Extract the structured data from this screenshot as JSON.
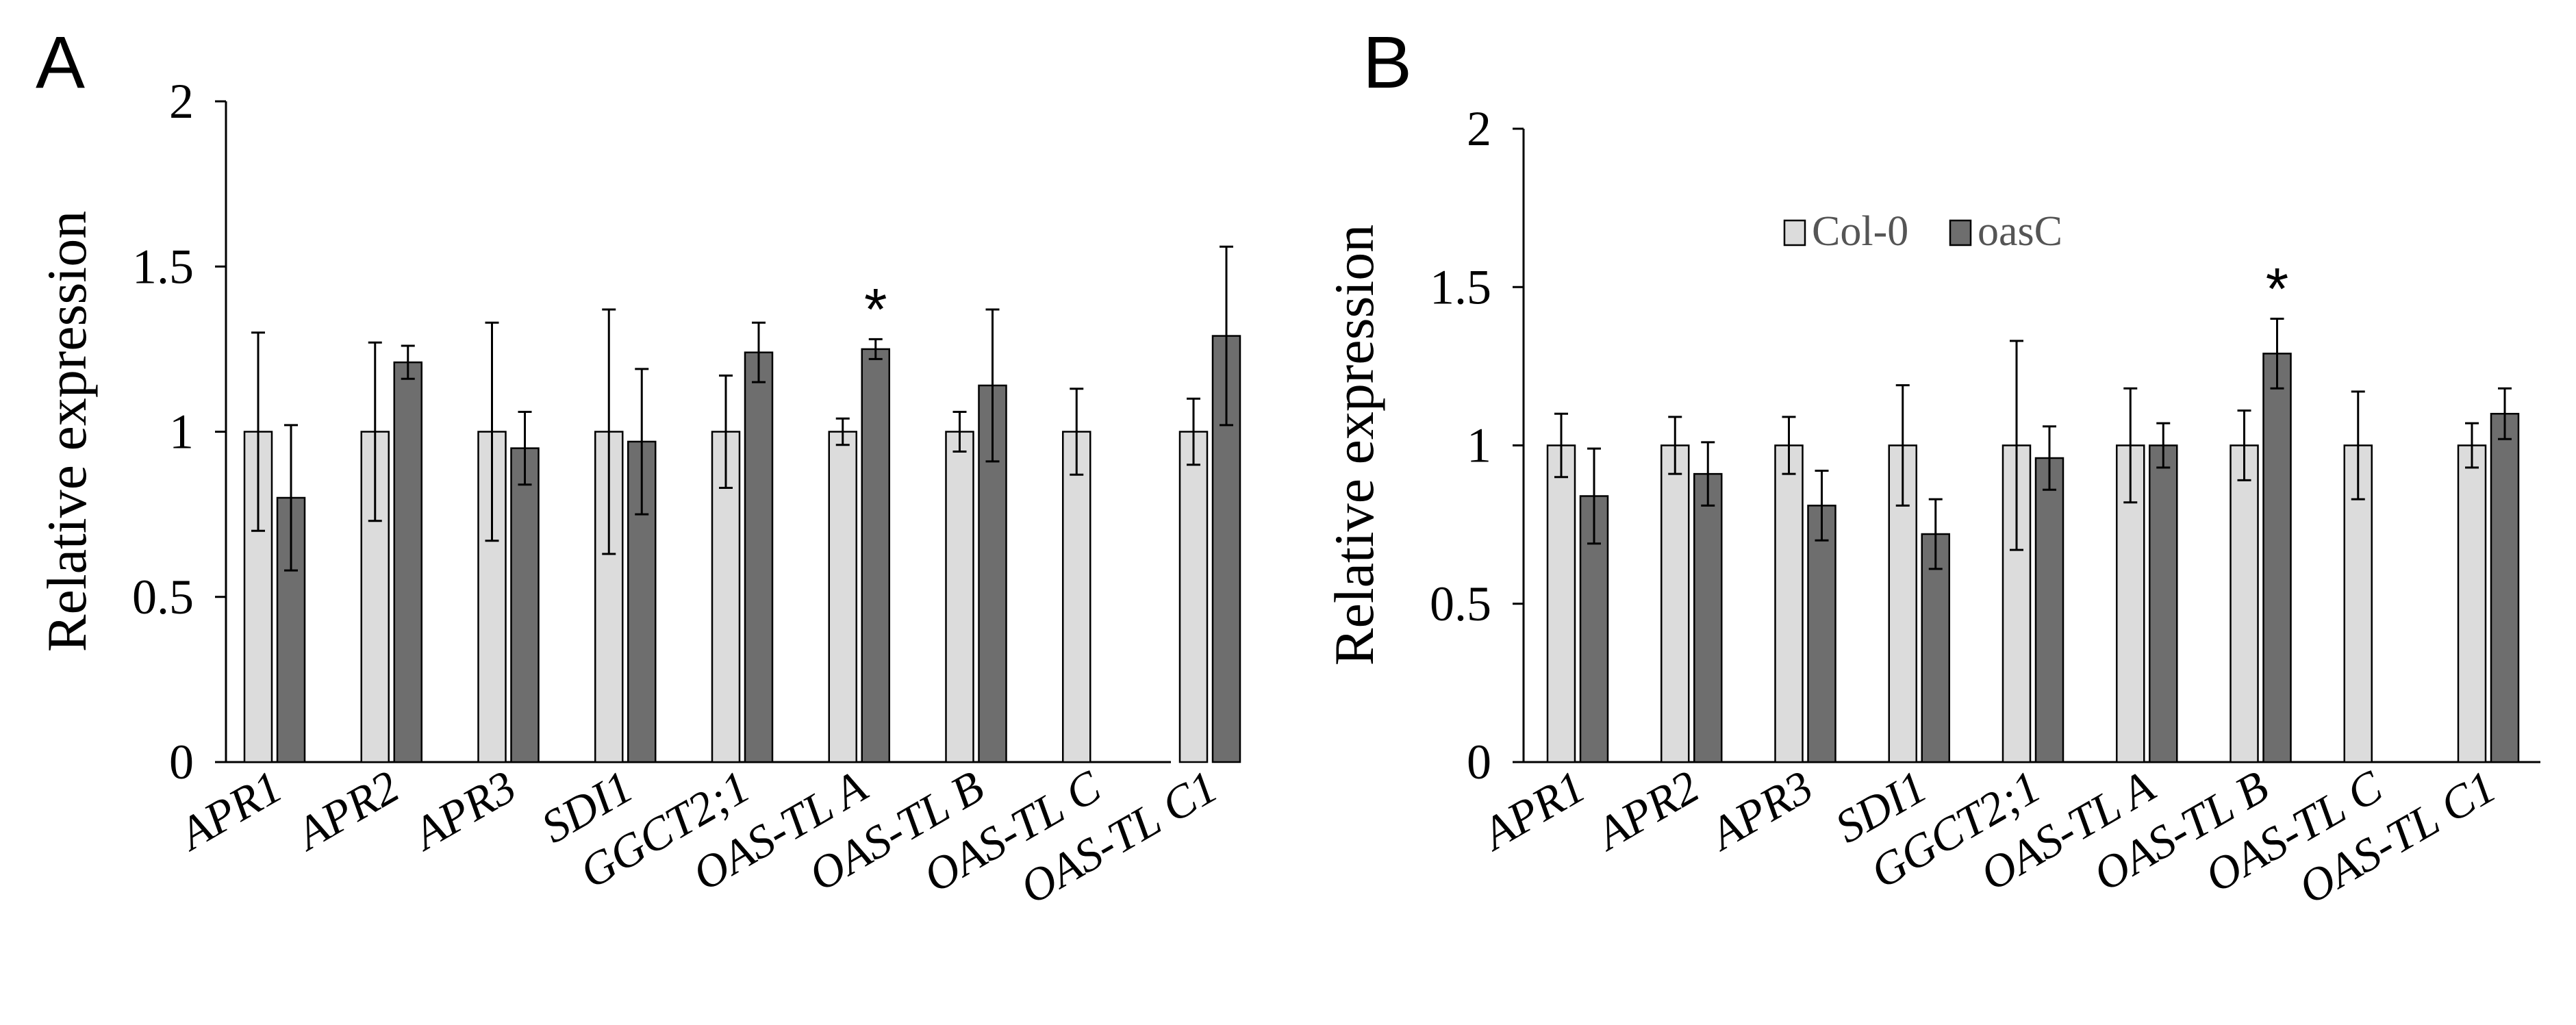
{
  "legend": {
    "entries": [
      {
        "name": "Col-0",
        "color": "#dcdcdc"
      },
      {
        "name": "oasC",
        "color": "#6e6e6e"
      }
    ]
  },
  "chart_data": [
    {
      "panel": "A",
      "type": "bar",
      "ylabel": "Relative expression",
      "ylim": [
        0,
        2
      ],
      "yticks": [
        "0",
        "0.5",
        "1",
        "1.5",
        "2"
      ],
      "categories": [
        "APR1",
        "APR2",
        "APR3",
        "SDI1",
        "GGCT2;1",
        "OAS-TL A",
        "OAS-TL B",
        "OAS-TL C",
        "OAS-TL C1"
      ],
      "series": [
        {
          "name": "Col-0",
          "values": [
            1,
            1,
            1,
            1,
            1,
            1,
            1,
            1,
            1
          ],
          "errors": [
            0.3,
            0.27,
            0.33,
            0.37,
            0.17,
            0.04,
            0.06,
            0.13,
            0.1
          ]
        },
        {
          "name": "oasC",
          "values": [
            0.8,
            1.21,
            0.95,
            0.97,
            1.24,
            1.25,
            1.14,
            null,
            1.29
          ],
          "errors": [
            0.22,
            0.05,
            0.11,
            0.22,
            0.09,
            0.03,
            0.23,
            null,
            0.27
          ]
        }
      ],
      "significance": [
        {
          "category": "OAS-TL A",
          "series": "oasC",
          "label": "*"
        }
      ]
    },
    {
      "panel": "B",
      "type": "bar",
      "ylabel": "Relative expression",
      "ylim": [
        0,
        2
      ],
      "yticks": [
        "0",
        "0.5",
        "1",
        "1.5",
        "2"
      ],
      "categories": [
        "APR1",
        "APR2",
        "APR3",
        "SDI1",
        "GGCT2;1",
        "OAS-TL A",
        "OAS-TL B",
        "OAS-TL C",
        "OAS-TL C1"
      ],
      "series": [
        {
          "name": "Col-0",
          "values": [
            1,
            1,
            1,
            1,
            1,
            1,
            1,
            1,
            1
          ],
          "errors": [
            0.1,
            0.09,
            0.09,
            0.19,
            0.33,
            0.18,
            0.11,
            0.17,
            0.07
          ]
        },
        {
          "name": "oasC",
          "values": [
            0.84,
            0.91,
            0.81,
            0.72,
            0.96,
            1.0,
            1.29,
            null,
            1.1
          ],
          "errors": [
            0.15,
            0.1,
            0.11,
            0.11,
            0.1,
            0.07,
            0.11,
            null,
            0.08
          ]
        }
      ],
      "significance": [
        {
          "category": "OAS-TL B",
          "series": "oasC",
          "label": "*"
        }
      ]
    }
  ]
}
